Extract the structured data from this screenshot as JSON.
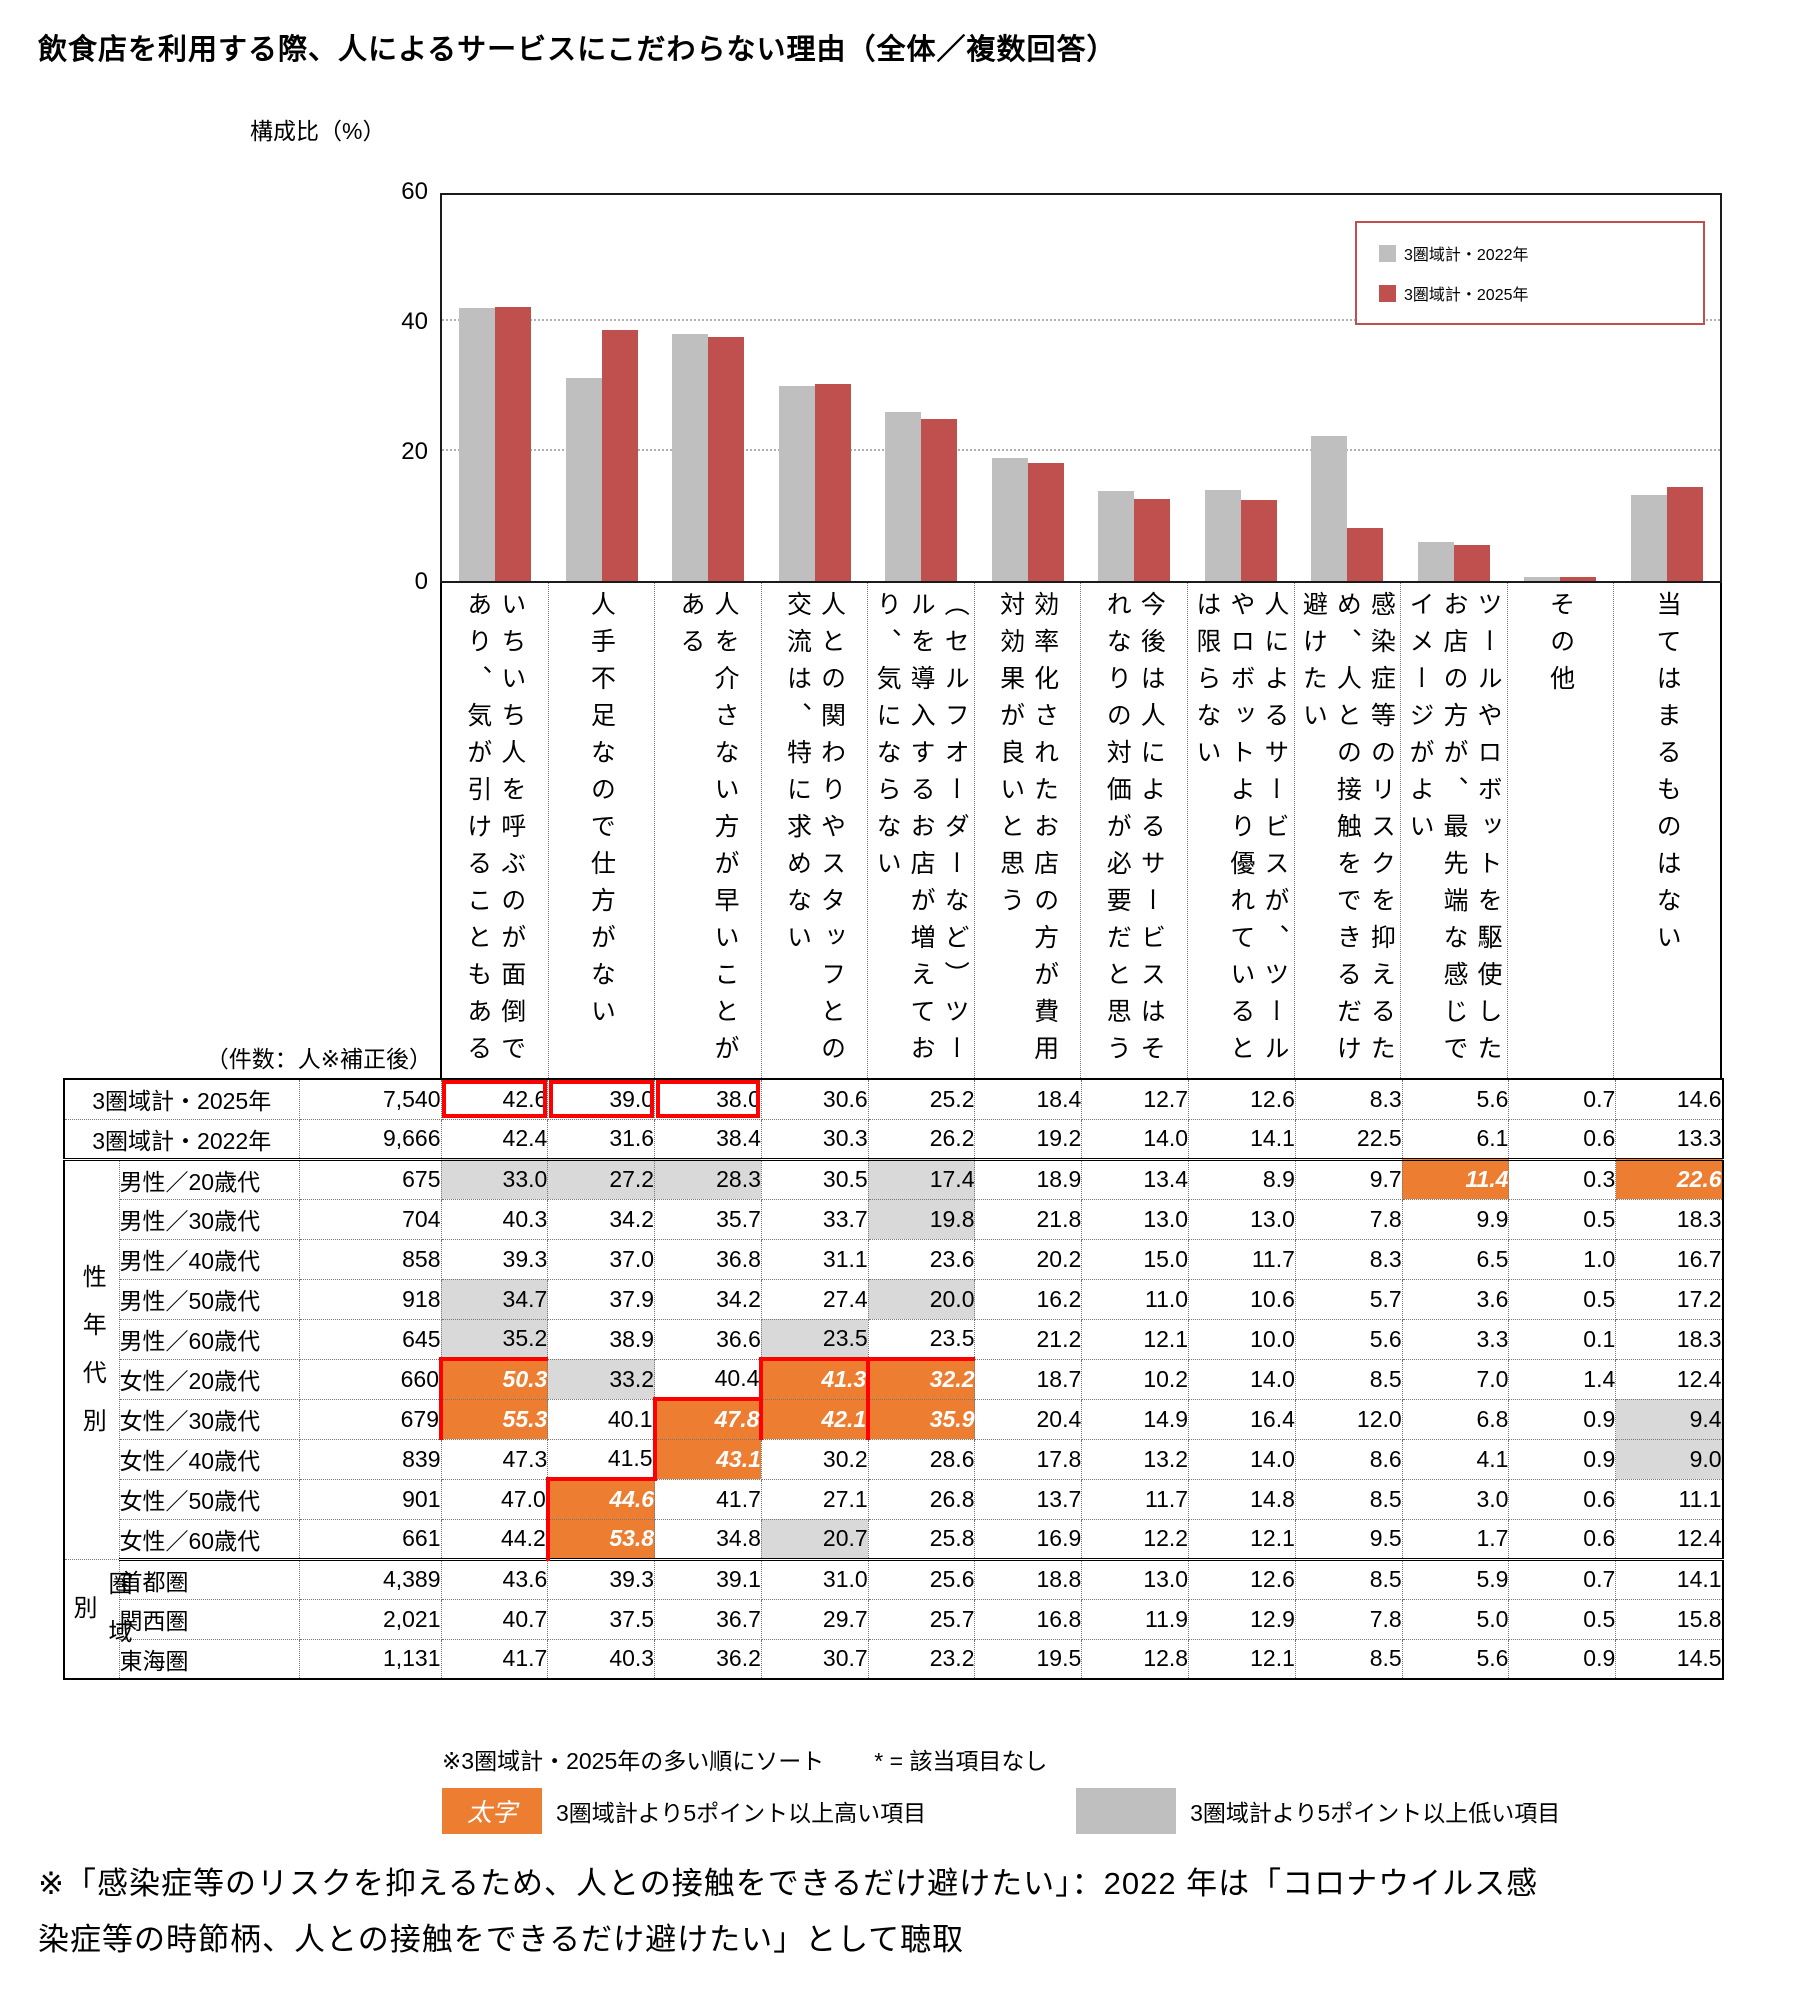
{
  "title": "飲食店を利用する際、人によるサービスにこだわらない理由（全体／複数回答）",
  "chart": {
    "y_axis_label": "構成比（%）",
    "y_ticks": [
      "60",
      "40",
      "20",
      "0"
    ],
    "legend": [
      {
        "label": "3圏域計・2022年",
        "color": "#BFBFBF"
      },
      {
        "label": "3圏域計・2025年",
        "color": "#C0504D"
      }
    ]
  },
  "chart_data": {
    "type": "bar",
    "title": "飲食店を利用する際、人によるサービスにこだわらない理由（全体／複数回答）",
    "ylabel": "構成比（%）",
    "ylim": [
      0,
      60
    ],
    "grid": "dotted horizontal lines at 20 and 40",
    "legend_position": "top-right",
    "categories": [
      "いちいち人を呼ぶのが面倒であり、気が引けることもある",
      "人手不足なので仕方がない",
      "人を介さない方が早いことがある",
      "人との関わりやスタッフとの交流は、特に求めない",
      "（セルフオーダーなど）ツールを導入するお店が増えており、気にならない",
      "効率化されたお店の方が費用対効果が良いと思う",
      "今後は人によるサービスはそれなりの対価が必要だと思う",
      "人によるサービスが、ツールやロボットより優れているとは限らない",
      "感染症等のリスクを抑えるため、人との接触をできるだけ避けたい",
      "ツールやロボットを駆使したお店の方が、最先端な感じでイメージがよい",
      "その他",
      "当てはまるものはない"
    ],
    "series": [
      {
        "name": "3圏域計・2022年",
        "color": "#BFBFBF",
        "values": [
          42.4,
          31.6,
          38.4,
          30.3,
          26.2,
          19.2,
          14.0,
          14.1,
          22.5,
          6.1,
          0.6,
          13.3
        ]
      },
      {
        "name": "3圏域計・2025年",
        "color": "#C0504D",
        "values": [
          42.6,
          39.0,
          38.0,
          30.6,
          25.2,
          18.4,
          12.7,
          12.6,
          8.3,
          5.6,
          0.7,
          14.6
        ]
      }
    ]
  },
  "table": {
    "count_header": "（件数：人※補正後）",
    "groups": [
      {
        "label": "性年代別",
        "start": 2,
        "span": 10
      },
      {
        "label": "圏域別",
        "start": 12,
        "span": 3
      }
    ],
    "rows": [
      {
        "label": "3圏域計・2025年",
        "n": "7,540",
        "header": true,
        "cells": [
          [
            "42.6",
            "r1"
          ],
          [
            "39.0",
            "r1"
          ],
          [
            "38.0",
            "r1"
          ],
          [
            "30.6",
            ""
          ],
          [
            "25.2",
            ""
          ],
          [
            "18.4",
            ""
          ],
          [
            "12.7",
            ""
          ],
          [
            "12.6",
            ""
          ],
          [
            "8.3",
            ""
          ],
          [
            "5.6",
            ""
          ],
          [
            "0.7",
            ""
          ],
          [
            "14.6",
            ""
          ]
        ]
      },
      {
        "label": "3圏域計・2022年",
        "n": "9,666",
        "header": true,
        "thick": true,
        "cells": [
          [
            "42.4",
            ""
          ],
          [
            "31.6",
            ""
          ],
          [
            "38.4",
            ""
          ],
          [
            "30.3",
            ""
          ],
          [
            "26.2",
            ""
          ],
          [
            "19.2",
            ""
          ],
          [
            "14.0",
            ""
          ],
          [
            "14.1",
            ""
          ],
          [
            "22.5",
            ""
          ],
          [
            "6.1",
            ""
          ],
          [
            "0.6",
            ""
          ],
          [
            "13.3",
            ""
          ]
        ]
      },
      {
        "label": "男性／20歳代",
        "n": "675",
        "cells": [
          [
            "33.0",
            "g"
          ],
          [
            "27.2",
            "g"
          ],
          [
            "28.3",
            "g"
          ],
          [
            "30.5",
            ""
          ],
          [
            "17.4",
            "g"
          ],
          [
            "18.9",
            ""
          ],
          [
            "13.4",
            ""
          ],
          [
            "8.9",
            ""
          ],
          [
            "9.7",
            ""
          ],
          [
            "11.4",
            "o"
          ],
          [
            "0.3",
            ""
          ],
          [
            "22.6",
            "o"
          ]
        ]
      },
      {
        "label": "男性／30歳代",
        "n": "704",
        "cells": [
          [
            "40.3",
            ""
          ],
          [
            "34.2",
            ""
          ],
          [
            "35.7",
            ""
          ],
          [
            "33.7",
            ""
          ],
          [
            "19.8",
            "g"
          ],
          [
            "21.8",
            ""
          ],
          [
            "13.0",
            ""
          ],
          [
            "13.0",
            ""
          ],
          [
            "7.8",
            ""
          ],
          [
            "9.9",
            ""
          ],
          [
            "0.5",
            ""
          ],
          [
            "18.3",
            ""
          ]
        ]
      },
      {
        "label": "男性／40歳代",
        "n": "858",
        "cells": [
          [
            "39.3",
            ""
          ],
          [
            "37.0",
            ""
          ],
          [
            "36.8",
            ""
          ],
          [
            "31.1",
            ""
          ],
          [
            "23.6",
            ""
          ],
          [
            "20.2",
            ""
          ],
          [
            "15.0",
            ""
          ],
          [
            "11.7",
            ""
          ],
          [
            "8.3",
            ""
          ],
          [
            "6.5",
            ""
          ],
          [
            "1.0",
            ""
          ],
          [
            "16.7",
            ""
          ]
        ]
      },
      {
        "label": "男性／50歳代",
        "n": "918",
        "cells": [
          [
            "34.7",
            "g"
          ],
          [
            "37.9",
            ""
          ],
          [
            "34.2",
            ""
          ],
          [
            "27.4",
            ""
          ],
          [
            "20.0",
            "g"
          ],
          [
            "16.2",
            ""
          ],
          [
            "11.0",
            ""
          ],
          [
            "10.6",
            ""
          ],
          [
            "5.7",
            ""
          ],
          [
            "3.6",
            ""
          ],
          [
            "0.5",
            ""
          ],
          [
            "17.2",
            ""
          ]
        ]
      },
      {
        "label": "男性／60歳代",
        "n": "645",
        "cells": [
          [
            "35.2",
            "g"
          ],
          [
            "38.9",
            ""
          ],
          [
            "36.6",
            ""
          ],
          [
            "23.5",
            "g"
          ],
          [
            "23.5",
            ""
          ],
          [
            "21.2",
            ""
          ],
          [
            "12.1",
            ""
          ],
          [
            "10.0",
            ""
          ],
          [
            "5.6",
            ""
          ],
          [
            "3.3",
            ""
          ],
          [
            "0.1",
            ""
          ],
          [
            "18.3",
            ""
          ]
        ]
      },
      {
        "label": "女性／20歳代",
        "n": "660",
        "cells": [
          [
            "50.3",
            "o rt"
          ],
          [
            "33.2",
            "g"
          ],
          [
            "40.4",
            ""
          ],
          [
            "41.3",
            "o rt"
          ],
          [
            "32.2",
            "o rt"
          ],
          [
            "18.7",
            ""
          ],
          [
            "10.2",
            ""
          ],
          [
            "14.0",
            ""
          ],
          [
            "8.5",
            ""
          ],
          [
            "7.0",
            ""
          ],
          [
            "1.4",
            ""
          ],
          [
            "12.4",
            ""
          ]
        ]
      },
      {
        "label": "女性／30歳代",
        "n": "679",
        "cells": [
          [
            "55.3",
            "o rb"
          ],
          [
            "40.1",
            ""
          ],
          [
            "47.8",
            "o rt"
          ],
          [
            "42.1",
            "o rb"
          ],
          [
            "35.9",
            "o rb"
          ],
          [
            "20.4",
            ""
          ],
          [
            "14.9",
            ""
          ],
          [
            "16.4",
            ""
          ],
          [
            "12.0",
            ""
          ],
          [
            "6.8",
            ""
          ],
          [
            "0.9",
            ""
          ],
          [
            "9.4",
            "g"
          ]
        ]
      },
      {
        "label": "女性／40歳代",
        "n": "839",
        "cells": [
          [
            "47.3",
            ""
          ],
          [
            "41.5",
            ""
          ],
          [
            "43.1",
            "o rb"
          ],
          [
            "30.2",
            ""
          ],
          [
            "28.6",
            ""
          ],
          [
            "17.8",
            ""
          ],
          [
            "13.2",
            ""
          ],
          [
            "14.0",
            ""
          ],
          [
            "8.6",
            ""
          ],
          [
            "4.1",
            ""
          ],
          [
            "0.9",
            ""
          ],
          [
            "9.0",
            "g"
          ]
        ]
      },
      {
        "label": "女性／50歳代",
        "n": "901",
        "cells": [
          [
            "47.0",
            ""
          ],
          [
            "44.6",
            "o rt"
          ],
          [
            "41.7",
            ""
          ],
          [
            "27.1",
            ""
          ],
          [
            "26.8",
            ""
          ],
          [
            "13.7",
            ""
          ],
          [
            "11.7",
            ""
          ],
          [
            "14.8",
            ""
          ],
          [
            "8.5",
            ""
          ],
          [
            "3.0",
            ""
          ],
          [
            "0.6",
            ""
          ],
          [
            "11.1",
            ""
          ]
        ]
      },
      {
        "label": "女性／60歳代",
        "n": "661",
        "thick": true,
        "cells": [
          [
            "44.2",
            ""
          ],
          [
            "53.8",
            "o rb"
          ],
          [
            "34.8",
            ""
          ],
          [
            "20.7",
            "g"
          ],
          [
            "25.8",
            ""
          ],
          [
            "16.9",
            ""
          ],
          [
            "12.2",
            ""
          ],
          [
            "12.1",
            ""
          ],
          [
            "9.5",
            ""
          ],
          [
            "1.7",
            ""
          ],
          [
            "0.6",
            ""
          ],
          [
            "12.4",
            ""
          ]
        ]
      },
      {
        "label": "首都圏",
        "n": "4,389",
        "cells": [
          [
            "43.6",
            ""
          ],
          [
            "39.3",
            ""
          ],
          [
            "39.1",
            ""
          ],
          [
            "31.0",
            ""
          ],
          [
            "25.6",
            ""
          ],
          [
            "18.8",
            ""
          ],
          [
            "13.0",
            ""
          ],
          [
            "12.6",
            ""
          ],
          [
            "8.5",
            ""
          ],
          [
            "5.9",
            ""
          ],
          [
            "0.7",
            ""
          ],
          [
            "14.1",
            ""
          ]
        ]
      },
      {
        "label": "関西圏",
        "n": "2,021",
        "cells": [
          [
            "40.7",
            ""
          ],
          [
            "37.5",
            ""
          ],
          [
            "36.7",
            ""
          ],
          [
            "29.7",
            ""
          ],
          [
            "25.7",
            ""
          ],
          [
            "16.8",
            ""
          ],
          [
            "11.9",
            ""
          ],
          [
            "12.9",
            ""
          ],
          [
            "7.8",
            ""
          ],
          [
            "5.0",
            ""
          ],
          [
            "0.5",
            ""
          ],
          [
            "15.8",
            ""
          ]
        ]
      },
      {
        "label": "東海圏",
        "n": "1,131",
        "cells": [
          [
            "41.7",
            ""
          ],
          [
            "40.3",
            ""
          ],
          [
            "36.2",
            ""
          ],
          [
            "30.7",
            ""
          ],
          [
            "23.2",
            ""
          ],
          [
            "19.5",
            ""
          ],
          [
            "12.8",
            ""
          ],
          [
            "12.1",
            ""
          ],
          [
            "8.5",
            ""
          ],
          [
            "5.6",
            ""
          ],
          [
            "0.9",
            ""
          ],
          [
            "14.5",
            ""
          ]
        ]
      }
    ]
  },
  "footnotes": {
    "sort_note": "※3圏域計・2025年の多い順にソート",
    "asterisk_note": "* = 該当項目なし",
    "high_swatch_label": "太字",
    "high_note": "3圏域計より5ポイント以上高い項目",
    "low_note": "3圏域計より5ポイント以上低い項目",
    "bottom_note_line1": "※「感染症等のリスクを抑えるため、人との接触をできるだけ避けたい」：2022 年は「コロナウイルス感",
    "bottom_note_line2": "染症等の時節柄、人との接触をできるだけ避けたい」として聴取"
  },
  "colors": {
    "bar_2022": "#BFBFBF",
    "bar_2025": "#C0504D",
    "highlight_high": "#ED7D31",
    "highlight_low": "#D9D9D9",
    "red_box": "#FF0000",
    "legend_border": "#C0504D"
  }
}
